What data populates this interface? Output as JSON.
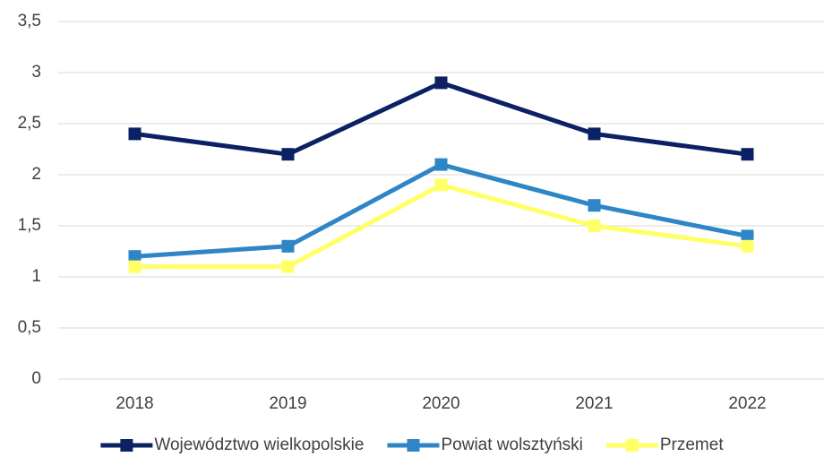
{
  "chart_data": {
    "type": "line",
    "categories": [
      "2018",
      "2019",
      "2020",
      "2021",
      "2022"
    ],
    "series": [
      {
        "name": "Województwo wielkopolskie",
        "color": "#0b2163",
        "values": [
          2.4,
          2.2,
          2.9,
          2.4,
          2.2
        ]
      },
      {
        "name": "Powiat wolsztyński",
        "color": "#2e86c6",
        "values": [
          1.2,
          1.3,
          2.1,
          1.7,
          1.4
        ]
      },
      {
        "name": "Przemet",
        "color": "#ffff66",
        "values": [
          1.1,
          1.1,
          1.9,
          1.5,
          1.3
        ]
      }
    ],
    "ylim": [
      0,
      3.5
    ],
    "yticks": [
      0,
      {
        "value": 0.5,
        "label": "0,5"
      },
      1,
      {
        "value": 1.5,
        "label": "1,5"
      },
      2,
      {
        "value": 2.5,
        "label": "2,5"
      },
      3,
      {
        "value": 3.5,
        "label": "3,5"
      }
    ],
    "grid": true,
    "legend": "bottom"
  }
}
